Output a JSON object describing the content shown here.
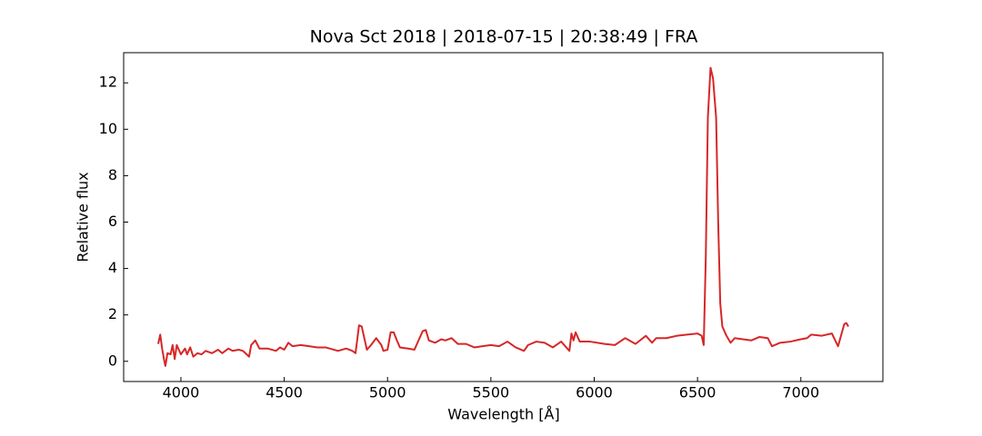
{
  "chart_data": {
    "type": "line",
    "title": "Nova Sct 2018 | 2018-07-15 | 20:38:49 | FRA",
    "x_label": "Wavelength [Å]",
    "y_label": "Relative flux",
    "xlim": [
      3723,
      7397
    ],
    "ylim": [
      -0.87,
      13.3
    ],
    "xticks": [
      4000,
      4500,
      5000,
      5500,
      6000,
      6500,
      7000
    ],
    "yticks": [
      0,
      2,
      4,
      6,
      8,
      10,
      12
    ],
    "x": [
      3890,
      3900,
      3910,
      3920,
      3925,
      3935,
      3950,
      3960,
      3970,
      3980,
      4000,
      4020,
      4030,
      4045,
      4060,
      4080,
      4100,
      4120,
      4150,
      4180,
      4200,
      4230,
      4250,
      4280,
      4300,
      4330,
      4340,
      4360,
      4380,
      4420,
      4460,
      4480,
      4500,
      4520,
      4540,
      4580,
      4620,
      4660,
      4700,
      4720,
      4760,
      4800,
      4830,
      4845,
      4862,
      4875,
      4900,
      4920,
      4945,
      4970,
      4980,
      5000,
      5015,
      5030,
      5045,
      5060,
      5100,
      5130,
      5150,
      5170,
      5185,
      5200,
      5230,
      5260,
      5280,
      5310,
      5340,
      5380,
      5420,
      5460,
      5500,
      5540,
      5580,
      5620,
      5660,
      5680,
      5720,
      5760,
      5800,
      5840,
      5880,
      5890,
      5900,
      5910,
      5930,
      5980,
      6050,
      6100,
      6150,
      6200,
      6250,
      6280,
      6300,
      6350,
      6400,
      6450,
      6500,
      6520,
      6530,
      6540,
      6550,
      6563,
      6575,
      6590,
      6600,
      6610,
      6620,
      6640,
      6660,
      6680,
      6720,
      6760,
      6800,
      6840,
      6860,
      6900,
      6950,
      7000,
      7030,
      7050,
      7100,
      7150,
      7180,
      7210,
      7220,
      7230
    ],
    "series": [
      {
        "name": "Nova Sct 2018",
        "color": "#d62728",
        "values": [
          0.75,
          1.15,
          0.5,
          0.0,
          -0.2,
          0.35,
          0.3,
          0.7,
          0.1,
          0.7,
          0.3,
          0.55,
          0.3,
          0.6,
          0.2,
          0.35,
          0.3,
          0.45,
          0.35,
          0.5,
          0.35,
          0.55,
          0.45,
          0.5,
          0.45,
          0.2,
          0.7,
          0.9,
          0.55,
          0.55,
          0.45,
          0.6,
          0.5,
          0.8,
          0.65,
          0.7,
          0.65,
          0.6,
          0.6,
          0.55,
          0.45,
          0.55,
          0.45,
          0.35,
          1.55,
          1.5,
          0.5,
          0.7,
          1.0,
          0.7,
          0.45,
          0.5,
          1.25,
          1.25,
          0.9,
          0.6,
          0.55,
          0.5,
          0.9,
          1.3,
          1.35,
          0.9,
          0.8,
          0.95,
          0.9,
          1.0,
          0.75,
          0.75,
          0.6,
          0.65,
          0.7,
          0.65,
          0.85,
          0.6,
          0.45,
          0.7,
          0.85,
          0.8,
          0.6,
          0.85,
          0.45,
          1.2,
          0.9,
          1.25,
          0.85,
          0.85,
          0.75,
          0.7,
          1.0,
          0.75,
          1.1,
          0.8,
          1.0,
          1.0,
          1.1,
          1.15,
          1.2,
          1.1,
          0.7,
          4.5,
          10.5,
          12.65,
          12.2,
          10.5,
          6.0,
          2.5,
          1.5,
          1.1,
          0.8,
          1.0,
          0.95,
          0.9,
          1.05,
          1.0,
          0.65,
          0.8,
          0.85,
          0.95,
          1.0,
          1.15,
          1.1,
          1.2,
          0.65,
          1.6,
          1.65,
          1.5
        ]
      }
    ]
  }
}
